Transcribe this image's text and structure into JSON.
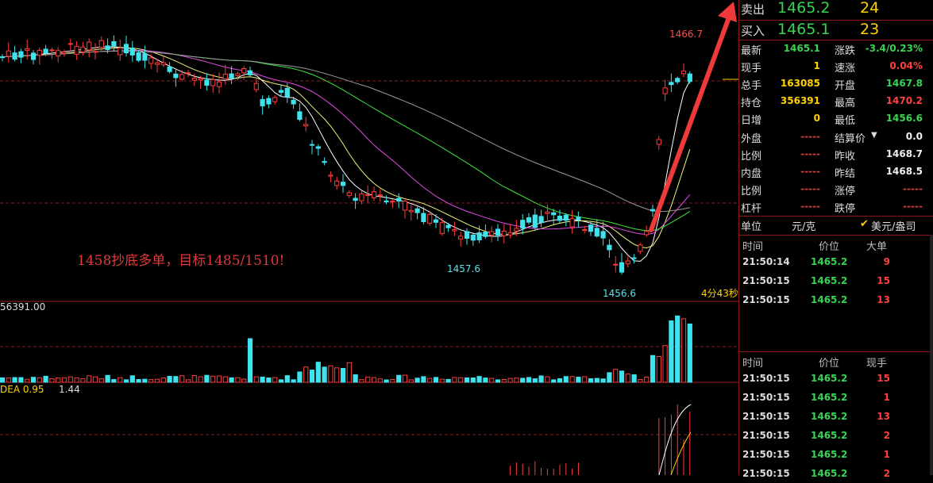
{
  "chart_data": {
    "type": "candlestick",
    "annotation": "1458抄底多单，目标1485/1510!",
    "high_label": "1466.7",
    "low_labels": [
      "1457.6",
      "1456.6"
    ],
    "countdown": "4分43秒",
    "volume_label": "56391.00",
    "macd_label": "DEA 0.95",
    "macd_value": "1.44",
    "colors": {
      "up": "#ff3b3b",
      "down": "#3fe3ee",
      "ma5": "#ffffff",
      "ma10": "#f5f07a",
      "ma20": "#e14be6",
      "ma40": "#3ee63e",
      "ma60": "#9a9a9a",
      "arrow": "#ee3a3a"
    }
  },
  "quote": {
    "ask": {
      "label": "卖出",
      "price": "1465.2",
      "vol": "24"
    },
    "bid": {
      "label": "买入",
      "price": "1465.1",
      "vol": "23"
    },
    "rows": [
      {
        "l1": "最新",
        "v1": "1465.1",
        "l2": "涨跌",
        "v2": "-3.4/0.23%"
      },
      {
        "l1": "现手",
        "v1": "1",
        "l2": "速涨",
        "v2": "0.04%"
      },
      {
        "l1": "总手",
        "v1": "163085",
        "l2": "开盘",
        "v2": "1467.8"
      },
      {
        "l1": "持仓",
        "v1": "356391",
        "l2": "最高",
        "v2": "1470.2"
      },
      {
        "l1": "日增",
        "v1": "0",
        "l2": "最低",
        "v2": "1456.6"
      },
      {
        "l1": "外盘",
        "v1": "-----",
        "l2": "结算价",
        "v2": "0.0"
      },
      {
        "l1": "比例",
        "v1": "-----",
        "l2": "昨收",
        "v2": "1468.7"
      },
      {
        "l1": "内盘",
        "v1": "-----",
        "l2": "昨结",
        "v2": "1468.5"
      },
      {
        "l1": "比例",
        "v1": "-----",
        "l2": "涨停",
        "v2": "-----"
      },
      {
        "l1": "杠杆",
        "v1": "-----",
        "l2": "跌停",
        "v2": "-----"
      }
    ],
    "unit": {
      "label": "单位",
      "v1": "元/克",
      "v2": "美元/盎司"
    }
  },
  "trades1": {
    "headers": [
      "时间",
      "价位",
      "大单"
    ],
    "rows": [
      {
        "t": "21:50:14",
        "p": "1465.2",
        "v": "9"
      },
      {
        "t": "21:50:15",
        "p": "1465.2",
        "v": "15"
      },
      {
        "t": "21:50:15",
        "p": "1465.2",
        "v": "13"
      }
    ]
  },
  "trades2": {
    "headers": [
      "时间",
      "价位",
      "现手"
    ],
    "rows": [
      {
        "t": "21:50:15",
        "p": "1465.2",
        "v": "15"
      },
      {
        "t": "21:50:15",
        "p": "1465.2",
        "v": "1"
      },
      {
        "t": "21:50:15",
        "p": "1465.2",
        "v": "13"
      },
      {
        "t": "21:50:15",
        "p": "1465.2",
        "v": "2"
      },
      {
        "t": "21:50:15",
        "p": "1465.2",
        "v": "1"
      },
      {
        "t": "21:50:15",
        "p": "1465.2",
        "v": "2"
      }
    ]
  }
}
